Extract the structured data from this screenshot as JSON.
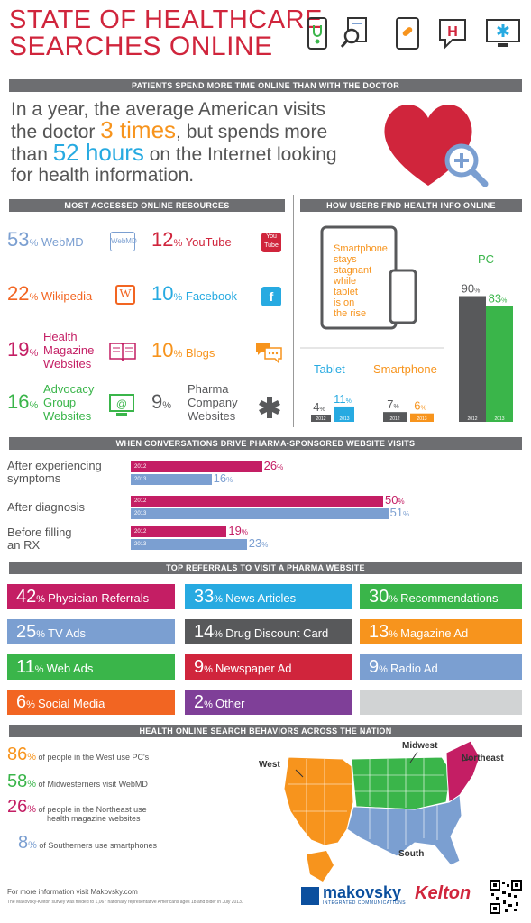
{
  "title": {
    "line1": "STATE OF HEALTHCARE",
    "line2": "SEARCHES ONLINE"
  },
  "header_icons": [
    "phone-stethoscope-icon",
    "document-magnifier-icon",
    "tablet-pill-icon",
    "hospital-sign-icon",
    "monitor-medical-icon"
  ],
  "section1": {
    "title": "PATIENTS SPEND MORE TIME ONLINE THAN WITH THE DOCTOR",
    "text_a": "In a year, the average American visits the doctor ",
    "highlight_a": "3 times",
    "text_b": ", but spends more than ",
    "highlight_b": "52 hours",
    "text_c": " on the Internet looking for health information."
  },
  "resources": {
    "title": "MOST ACCESSED ONLINE RESOURCES",
    "items": [
      {
        "num": "53",
        "label": "WebMD",
        "color": "#7b9fd1"
      },
      {
        "num": "12",
        "label": "YouTube",
        "color": "#d0253c"
      },
      {
        "num": "22",
        "label": "Wikipedia",
        "color": "#f26522"
      },
      {
        "num": "10",
        "label": "Facebook",
        "color": "#27aae1"
      },
      {
        "num": "19",
        "label1": "Health",
        "label2": "Magazine",
        "label3": "Websites",
        "color": "#c41e64"
      },
      {
        "num": "10",
        "label": "Blogs",
        "color": "#f7941d"
      },
      {
        "num": "16",
        "label1": "Advocacy",
        "label2": "Group",
        "label3": "Websites",
        "color": "#3ab54a"
      },
      {
        "num": "9",
        "label1": "Pharma",
        "label2": "Company",
        "label3": "Websites",
        "color": "#58595b"
      }
    ],
    "pct": "%",
    "webmd_logo": "WebMD",
    "youtube_logo": "You Tube",
    "wiki_logo": "W",
    "fb_logo": "f"
  },
  "howfind": {
    "title": "HOW USERS FIND HEALTH INFO ONLINE",
    "note": [
      "Smartphone",
      "stays",
      "stagnant",
      "while",
      "tablet",
      "is on",
      "the rise"
    ],
    "pc_label": "PC",
    "tablet_label": "Tablet",
    "smartphone_label": "Smartphone",
    "years": [
      "2012",
      "2013"
    ],
    "chart_data": {
      "type": "bar",
      "categories": [
        "Tablet",
        "Smartphone",
        "PC"
      ],
      "series": [
        {
          "name": "2012",
          "values": [
            4,
            7,
            90
          ]
        },
        {
          "name": "2013",
          "values": [
            11,
            6,
            83
          ]
        }
      ]
    },
    "labels": {
      "t12": "4",
      "t13": "11",
      "s12": "7",
      "s13": "6",
      "p12": "90",
      "p13": "83"
    }
  },
  "conversations": {
    "title": "WHEN CONVERSATIONS DRIVE PHARMA-SPONSORED WEBSITE VISITS",
    "rows": [
      {
        "label1": "After experiencing",
        "label2": "symptoms",
        "v2012": 26,
        "v2013": 16,
        "t2012": "26",
        "t2013": "16"
      },
      {
        "label1": "After diagnosis",
        "label2": "",
        "v2012": 50,
        "v2013": 51,
        "t2012": "50",
        "t2013": "51"
      },
      {
        "label1": "Before filling",
        "label2": "an RX",
        "v2012": 19,
        "v2013": 23,
        "t2012": "19",
        "t2013": "23"
      }
    ],
    "year12": "2012",
    "year13": "2013"
  },
  "referrals": {
    "title": "TOP REFERRALS TO VISIT A PHARMA WEBSITE",
    "items": [
      {
        "n": "42",
        "label": "Physician Referrals",
        "color": "#c41e64"
      },
      {
        "n": "33",
        "label": "News Articles",
        "color": "#27aae1"
      },
      {
        "n": "30",
        "label": "Recommendations",
        "color": "#3ab54a"
      },
      {
        "n": "25",
        "label": "TV Ads",
        "color": "#7b9fd1"
      },
      {
        "n": "14",
        "label": "Drug Discount Card",
        "color": "#58595b"
      },
      {
        "n": "13",
        "label": "Magazine Ad",
        "color": "#f7941d"
      },
      {
        "n": "11",
        "label": "Web Ads",
        "color": "#3ab54a"
      },
      {
        "n": "9",
        "label": "Newspaper Ad",
        "color": "#d0253c"
      },
      {
        "n": "9",
        "label": "Radio Ad",
        "color": "#7b9fd1"
      },
      {
        "n": "6",
        "label": "Social Media",
        "color": "#f26522"
      },
      {
        "n": "2",
        "label": "Other",
        "color": "#7f3f98"
      },
      {
        "n": "",
        "label": "",
        "color": "#d1d3d4"
      }
    ]
  },
  "behaviors": {
    "title": "HEALTH ONLINE SEARCH BEHAVIORS ACROSS THE NATION",
    "items": [
      {
        "n": "86",
        "text1": "of people in the West use PC's",
        "text2": "",
        "color": "#f7941d"
      },
      {
        "n": "58",
        "text1": "of Midwesterners visit WebMD",
        "text2": "",
        "color": "#3ab54a"
      },
      {
        "n": "26",
        "text1": "of people in the Northeast use",
        "text2": "health magazine websites",
        "color": "#c41e64"
      },
      {
        "n": "8",
        "text1": "of Southerners use smartphones",
        "text2": "",
        "color": "#7b9fd1"
      }
    ],
    "regions": {
      "west": "West",
      "midwest": "Midwest",
      "northeast": "Northeast",
      "south": "South"
    }
  },
  "footer": {
    "more": "For more information visit Makovsky.com",
    "survey": "The Makovsky-Kelton survey was fielded to 1,067 nationally representative Americans ages 18 and older in July 2013.",
    "makovsky": "makovsky",
    "makovsky_sub": "INTEGRATED COMMUNICATIONS",
    "kelton": "Kelton"
  }
}
